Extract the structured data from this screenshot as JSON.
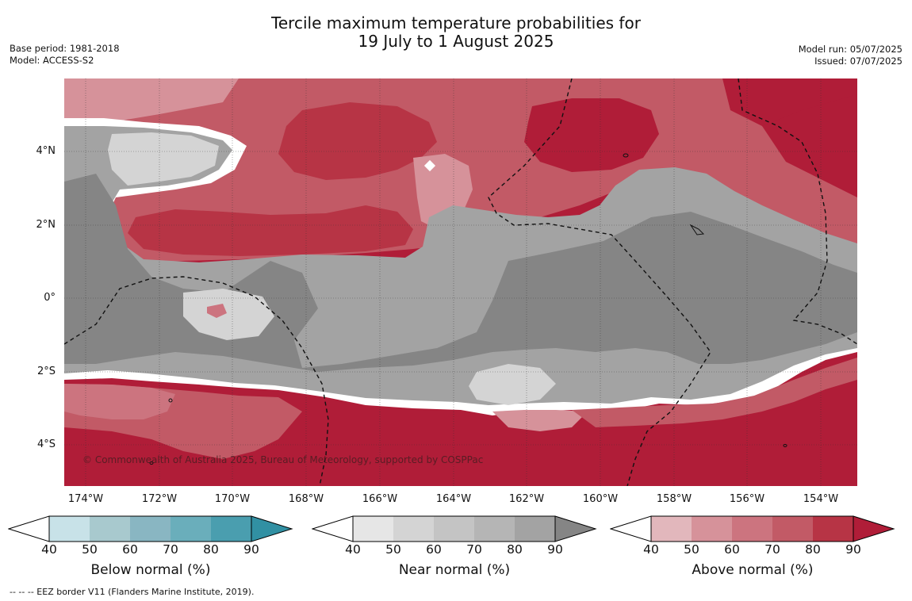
{
  "title": {
    "line1": "Tercile maximum temperature probabilities for",
    "line2": "19 July to 1 August 2025"
  },
  "meta": {
    "base_period": "Base period: 1981-2018",
    "model": "Model: ACCESS-S2",
    "model_run": "Model run: 05/07/2025",
    "issued": "Issued: 07/07/2025"
  },
  "map": {
    "lat_labels": [
      "4°N",
      "2°N",
      "0°",
      "2°S",
      "4°S"
    ],
    "lon_labels": [
      "174°W",
      "172°W",
      "170°W",
      "168°W",
      "166°W",
      "164°W",
      "162°W",
      "160°W",
      "158°W",
      "156°W",
      "154°W"
    ],
    "copyright": "© Commonwealth of Australia 2025, Bureau of Meteorology, supported by COSPPac",
    "eez_style": "dashed black",
    "grid": true
  },
  "colorbars": [
    {
      "label": "Below normal (%)",
      "ticks": [
        "40",
        "50",
        "60",
        "70",
        "80",
        "90"
      ],
      "colors": [
        "#ffffff",
        "#c8e2e8",
        "#a8c9ce",
        "#89b6c2",
        "#6aaebb",
        "#4a9eaf",
        "#3190a3"
      ]
    },
    {
      "label": "Near normal (%)",
      "ticks": [
        "40",
        "50",
        "60",
        "70",
        "80",
        "90"
      ],
      "colors": [
        "#ffffff",
        "#e6e6e6",
        "#d4d4d4",
        "#c4c4c4",
        "#b5b5b5",
        "#a3a3a3",
        "#858585"
      ]
    },
    {
      "label": "Above normal (%)",
      "ticks": [
        "40",
        "50",
        "60",
        "70",
        "80",
        "90"
      ],
      "colors": [
        "#ffffff",
        "#e2b7bc",
        "#d6929a",
        "#cc747f",
        "#c25a66",
        "#b73445",
        "#b01d38"
      ]
    }
  ],
  "footnote": "--  --  -- EEZ border V11 (Flanders Marine Institute, 2019)."
}
